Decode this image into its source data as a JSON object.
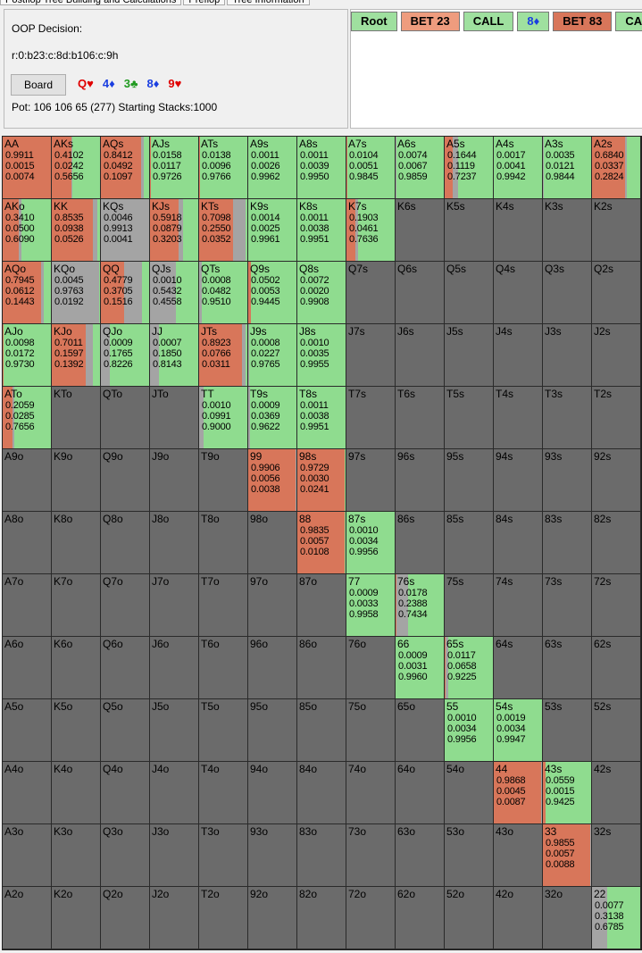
{
  "tabs": [
    "Postflop Tree Building and Calculations",
    "Preflop",
    "Tree Information"
  ],
  "decision": "OOP Decision:",
  "line": "r:0:b23:c:8d:b106:c:9h",
  "board_button": "Board",
  "board": [
    {
      "card": "Q♥",
      "color": "#e00000"
    },
    {
      "card": "4♦",
      "color": "#1a3ee0"
    },
    {
      "card": "3♣",
      "color": "#1f9a1f"
    },
    {
      "card": "8♦",
      "color": "#1a3ee0"
    },
    {
      "card": "9♥",
      "color": "#e00000"
    }
  ],
  "pot": "Pot: 106 106 65 (277) Starting Stacks:1000",
  "breadcrumbs": [
    {
      "text": "Root",
      "color": "#9fe09f"
    },
    {
      "text": "BET 23",
      "color": "#ee9c7e"
    },
    {
      "text": "CALL",
      "color": "#9fe09f"
    },
    {
      "text": "8♦",
      "color": "#9fe09f"
    },
    {
      "text": "BET 83",
      "color": "#d8765a"
    },
    {
      "text": "CALL",
      "color": "#9fe09f"
    }
  ],
  "action_colors": [
    "#d8765a",
    "#a4a4a4",
    "#8fdc8f"
  ],
  "grid": [
    [
      {
        "hand": "AA",
        "freqs": [
          "0.9911",
          "0.0015",
          "0.0074"
        ]
      },
      {
        "hand": "AKs",
        "freqs": [
          "0.4102",
          "0.0242",
          "0.5656"
        ]
      },
      {
        "hand": "AQs",
        "freqs": [
          "0.8412",
          "0.0492",
          "0.1097"
        ]
      },
      {
        "hand": "AJs",
        "freqs": [
          "0.0158",
          "0.0117",
          "0.9726"
        ]
      },
      {
        "hand": "ATs",
        "freqs": [
          "0.0138",
          "0.0096",
          "0.9766"
        ]
      },
      {
        "hand": "A9s",
        "freqs": [
          "0.0011",
          "0.0026",
          "0.9962"
        ]
      },
      {
        "hand": "A8s",
        "freqs": [
          "0.0011",
          "0.0039",
          "0.9950"
        ]
      },
      {
        "hand": "A7s",
        "freqs": [
          "0.0104",
          "0.0051",
          "0.9845"
        ]
      },
      {
        "hand": "A6s",
        "freqs": [
          "0.0074",
          "0.0067",
          "0.9859"
        ]
      },
      {
        "hand": "A5s",
        "freqs": [
          "0.1644",
          "0.1119",
          "0.7237"
        ]
      },
      {
        "hand": "A4s",
        "freqs": [
          "0.0017",
          "0.0041",
          "0.9942"
        ]
      },
      {
        "hand": "A3s",
        "freqs": [
          "0.0035",
          "0.0121",
          "0.9844"
        ]
      },
      {
        "hand": "A2s",
        "freqs": [
          "0.6840",
          "0.0337",
          "0.2824"
        ]
      }
    ],
    [
      {
        "hand": "AKo",
        "freqs": [
          "0.3410",
          "0.0500",
          "0.6090"
        ]
      },
      {
        "hand": "KK",
        "freqs": [
          "0.8535",
          "0.0938",
          "0.0526"
        ]
      },
      {
        "hand": "KQs",
        "freqs": [
          "0.0046",
          "0.9913",
          "0.0041"
        ]
      },
      {
        "hand": "KJs",
        "freqs": [
          "0.5918",
          "0.0879",
          "0.3203"
        ]
      },
      {
        "hand": "KTs",
        "freqs": [
          "0.7098",
          "0.2550",
          "0.0352"
        ]
      },
      {
        "hand": "K9s",
        "freqs": [
          "0.0014",
          "0.0025",
          "0.9961"
        ]
      },
      {
        "hand": "K8s",
        "freqs": [
          "0.0011",
          "0.0038",
          "0.9951"
        ]
      },
      {
        "hand": "K7s",
        "freqs": [
          "0.1903",
          "0.0461",
          "0.7636"
        ]
      },
      {
        "hand": "K6s"
      },
      {
        "hand": "K5s"
      },
      {
        "hand": "K4s"
      },
      {
        "hand": "K3s"
      },
      {
        "hand": "K2s"
      }
    ],
    [
      {
        "hand": "AQo",
        "freqs": [
          "0.7945",
          "0.0612",
          "0.1443"
        ]
      },
      {
        "hand": "KQo",
        "freqs": [
          "0.0045",
          "0.9763",
          "0.0192"
        ]
      },
      {
        "hand": "QQ",
        "freqs": [
          "0.4779",
          "0.3705",
          "0.1516"
        ]
      },
      {
        "hand": "QJs",
        "freqs": [
          "0.0010",
          "0.5432",
          "0.4558"
        ]
      },
      {
        "hand": "QTs",
        "freqs": [
          "0.0008",
          "0.0482",
          "0.9510"
        ]
      },
      {
        "hand": "Q9s",
        "freqs": [
          "0.0502",
          "0.0053",
          "0.9445"
        ]
      },
      {
        "hand": "Q8s",
        "freqs": [
          "0.0072",
          "0.0020",
          "0.9908"
        ]
      },
      {
        "hand": "Q7s"
      },
      {
        "hand": "Q6s"
      },
      {
        "hand": "Q5s"
      },
      {
        "hand": "Q4s"
      },
      {
        "hand": "Q3s"
      },
      {
        "hand": "Q2s"
      }
    ],
    [
      {
        "hand": "AJo",
        "freqs": [
          "0.0098",
          "0.0172",
          "0.9730"
        ]
      },
      {
        "hand": "KJo",
        "freqs": [
          "0.7011",
          "0.1597",
          "0.1392"
        ]
      },
      {
        "hand": "QJo",
        "freqs": [
          "0.0009",
          "0.1765",
          "0.8226"
        ]
      },
      {
        "hand": "JJ",
        "freqs": [
          "0.0007",
          "0.1850",
          "0.8143"
        ]
      },
      {
        "hand": "JTs",
        "freqs": [
          "0.8923",
          "0.0766",
          "0.0311"
        ]
      },
      {
        "hand": "J9s",
        "freqs": [
          "0.0008",
          "0.0227",
          "0.9765"
        ]
      },
      {
        "hand": "J8s",
        "freqs": [
          "0.0010",
          "0.0035",
          "0.9955"
        ]
      },
      {
        "hand": "J7s"
      },
      {
        "hand": "J6s"
      },
      {
        "hand": "J5s"
      },
      {
        "hand": "J4s"
      },
      {
        "hand": "J3s"
      },
      {
        "hand": "J2s"
      }
    ],
    [
      {
        "hand": "ATo",
        "freqs": [
          "0.2059",
          "0.0285",
          "0.7656"
        ]
      },
      {
        "hand": "KTo"
      },
      {
        "hand": "QTo"
      },
      {
        "hand": "JTo"
      },
      {
        "hand": "TT",
        "freqs": [
          "0.0010",
          "0.0991",
          "0.9000"
        ]
      },
      {
        "hand": "T9s",
        "freqs": [
          "0.0009",
          "0.0369",
          "0.9622"
        ]
      },
      {
        "hand": "T8s",
        "freqs": [
          "0.0011",
          "0.0038",
          "0.9951"
        ]
      },
      {
        "hand": "T7s"
      },
      {
        "hand": "T6s"
      },
      {
        "hand": "T5s"
      },
      {
        "hand": "T4s"
      },
      {
        "hand": "T3s"
      },
      {
        "hand": "T2s"
      }
    ],
    [
      {
        "hand": "A9o"
      },
      {
        "hand": "K9o"
      },
      {
        "hand": "Q9o"
      },
      {
        "hand": "J9o"
      },
      {
        "hand": "T9o"
      },
      {
        "hand": "99",
        "freqs": [
          "0.9906",
          "0.0056",
          "0.0038"
        ]
      },
      {
        "hand": "98s",
        "freqs": [
          "0.9729",
          "0.0030",
          "0.0241"
        ]
      },
      {
        "hand": "97s"
      },
      {
        "hand": "96s"
      },
      {
        "hand": "95s"
      },
      {
        "hand": "94s"
      },
      {
        "hand": "93s"
      },
      {
        "hand": "92s"
      }
    ],
    [
      {
        "hand": "A8o"
      },
      {
        "hand": "K8o"
      },
      {
        "hand": "Q8o"
      },
      {
        "hand": "J8o"
      },
      {
        "hand": "T8o"
      },
      {
        "hand": "98o"
      },
      {
        "hand": "88",
        "freqs": [
          "0.9835",
          "0.0057",
          "0.0108"
        ]
      },
      {
        "hand": "87s",
        "freqs": [
          "0.0010",
          "0.0034",
          "0.9956"
        ]
      },
      {
        "hand": "86s"
      },
      {
        "hand": "85s"
      },
      {
        "hand": "84s"
      },
      {
        "hand": "83s"
      },
      {
        "hand": "82s"
      }
    ],
    [
      {
        "hand": "A7o"
      },
      {
        "hand": "K7o"
      },
      {
        "hand": "Q7o"
      },
      {
        "hand": "J7o"
      },
      {
        "hand": "T7o"
      },
      {
        "hand": "97o"
      },
      {
        "hand": "87o"
      },
      {
        "hand": "77",
        "freqs": [
          "0.0009",
          "0.0033",
          "0.9958"
        ]
      },
      {
        "hand": "76s",
        "freqs": [
          "0.0178",
          "0.2388",
          "0.7434"
        ]
      },
      {
        "hand": "75s"
      },
      {
        "hand": "74s"
      },
      {
        "hand": "73s"
      },
      {
        "hand": "72s"
      }
    ],
    [
      {
        "hand": "A6o"
      },
      {
        "hand": "K6o"
      },
      {
        "hand": "Q6o"
      },
      {
        "hand": "J6o"
      },
      {
        "hand": "T6o"
      },
      {
        "hand": "96o"
      },
      {
        "hand": "86o"
      },
      {
        "hand": "76o"
      },
      {
        "hand": "66",
        "freqs": [
          "0.0009",
          "0.0031",
          "0.9960"
        ]
      },
      {
        "hand": "65s",
        "freqs": [
          "0.0117",
          "0.0658",
          "0.9225"
        ]
      },
      {
        "hand": "64s"
      },
      {
        "hand": "63s"
      },
      {
        "hand": "62s"
      }
    ],
    [
      {
        "hand": "A5o"
      },
      {
        "hand": "K5o"
      },
      {
        "hand": "Q5o"
      },
      {
        "hand": "J5o"
      },
      {
        "hand": "T5o"
      },
      {
        "hand": "95o"
      },
      {
        "hand": "85o"
      },
      {
        "hand": "75o"
      },
      {
        "hand": "65o"
      },
      {
        "hand": "55",
        "freqs": [
          "0.0010",
          "0.0034",
          "0.9956"
        ]
      },
      {
        "hand": "54s",
        "freqs": [
          "0.0019",
          "0.0034",
          "0.9947"
        ]
      },
      {
        "hand": "53s"
      },
      {
        "hand": "52s"
      }
    ],
    [
      {
        "hand": "A4o"
      },
      {
        "hand": "K4o"
      },
      {
        "hand": "Q4o"
      },
      {
        "hand": "J4o"
      },
      {
        "hand": "T4o"
      },
      {
        "hand": "94o"
      },
      {
        "hand": "84o"
      },
      {
        "hand": "74o"
      },
      {
        "hand": "64o"
      },
      {
        "hand": "54o"
      },
      {
        "hand": "44",
        "freqs": [
          "0.9868",
          "0.0045",
          "0.0087"
        ]
      },
      {
        "hand": "43s",
        "freqs": [
          "0.0559",
          "0.0015",
          "0.9425"
        ]
      },
      {
        "hand": "42s"
      }
    ],
    [
      {
        "hand": "A3o"
      },
      {
        "hand": "K3o"
      },
      {
        "hand": "Q3o"
      },
      {
        "hand": "J3o"
      },
      {
        "hand": "T3o"
      },
      {
        "hand": "93o"
      },
      {
        "hand": "83o"
      },
      {
        "hand": "73o"
      },
      {
        "hand": "63o"
      },
      {
        "hand": "53o"
      },
      {
        "hand": "43o"
      },
      {
        "hand": "33",
        "freqs": [
          "0.9855",
          "0.0057",
          "0.0088"
        ]
      },
      {
        "hand": "32s"
      }
    ],
    [
      {
        "hand": "A2o"
      },
      {
        "hand": "K2o"
      },
      {
        "hand": "Q2o"
      },
      {
        "hand": "J2o"
      },
      {
        "hand": "T2o"
      },
      {
        "hand": "92o"
      },
      {
        "hand": "82o"
      },
      {
        "hand": "72o"
      },
      {
        "hand": "62o"
      },
      {
        "hand": "52o"
      },
      {
        "hand": "42o"
      },
      {
        "hand": "32o"
      },
      {
        "hand": "22",
        "freqs": [
          "0.0077",
          "0.3138",
          "0.6785"
        ]
      }
    ]
  ]
}
